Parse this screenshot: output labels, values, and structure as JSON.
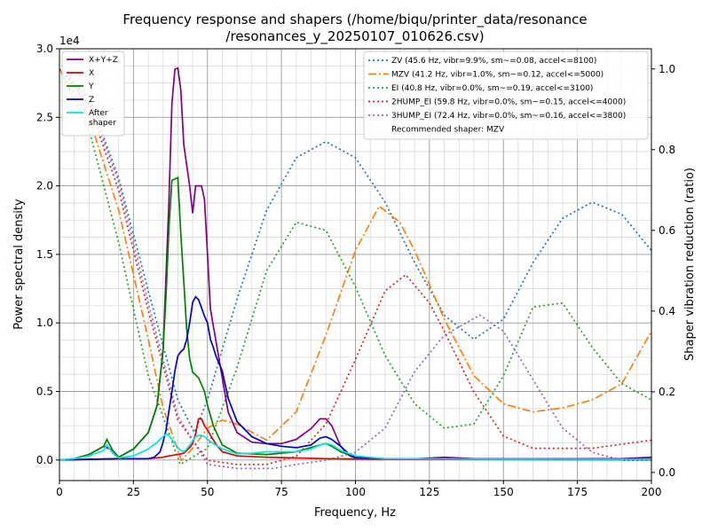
{
  "chart_data": {
    "type": "line",
    "title": [
      "Frequency response and shapers (/home/biqu/printer_data/resonance",
      "/resonances_y_20250107_010626.csv)"
    ],
    "xlabel": "Frequency, Hz",
    "ylabel": "Power spectral density",
    "y2label": "Shaper vibration reduction (ratio)",
    "y_offset_text": "1e4",
    "xlim": [
      0,
      200
    ],
    "ylim": [
      -1500,
      30000
    ],
    "y2lim": [
      -0.02,
      1.05
    ],
    "xticks": [
      0,
      25,
      50,
      75,
      100,
      125,
      150,
      175,
      200
    ],
    "yticks": [
      0,
      5000,
      10000,
      15000,
      20000,
      25000,
      30000
    ],
    "ytick_labels": [
      "0.0",
      "0.5",
      "1.0",
      "1.5",
      "2.0",
      "2.5",
      "3.0"
    ],
    "y2ticks": [
      0.0,
      0.2,
      0.4,
      0.6,
      0.8,
      1.0
    ],
    "y2tick_labels": [
      "0.0",
      "0.2",
      "0.4",
      "0.6",
      "0.8",
      "1.0"
    ],
    "grid": true,
    "legend_left_position": "top-left",
    "legend_right_position": "top-right",
    "psd_series": [
      {
        "name": "X+Y+Z",
        "color": "#800080",
        "x": [
          0,
          5,
          10,
          15,
          18,
          20,
          25,
          30,
          33,
          35,
          36,
          37,
          38,
          39,
          40,
          41,
          42,
          44,
          45,
          46,
          47,
          48,
          49,
          50,
          51,
          53,
          55,
          57,
          60,
          65,
          70,
          75,
          80,
          85,
          88,
          90,
          92,
          95,
          98,
          100,
          105,
          110,
          120,
          130,
          140,
          150,
          160,
          170,
          180,
          190,
          200
        ],
        "y": [
          0,
          100,
          400,
          1000,
          700,
          200,
          800,
          2000,
          4000,
          8000,
          13500,
          19000,
          26000,
          28500,
          28600,
          27000,
          23000,
          20000,
          18000,
          20000,
          20000,
          20000,
          19000,
          15000,
          11000,
          8500,
          6000,
          3500,
          2000,
          1300,
          1200,
          1200,
          1500,
          2300,
          3000,
          3000,
          2500,
          1000,
          300,
          150,
          100,
          80,
          80,
          200,
          100,
          80,
          80,
          80,
          100,
          100,
          200
        ]
      },
      {
        "name": "X",
        "color": "#dd0000",
        "x": [
          0,
          10,
          20,
          30,
          35,
          37,
          40,
          42,
          44,
          45,
          46,
          47,
          48,
          49,
          50,
          51,
          53,
          55,
          60,
          70,
          80,
          90,
          100,
          120,
          150,
          200
        ],
        "y": [
          0,
          50,
          100,
          100,
          200,
          300,
          400,
          500,
          900,
          1200,
          1900,
          3000,
          3000,
          2500,
          2200,
          1800,
          1100,
          600,
          300,
          200,
          150,
          100,
          80,
          50,
          30,
          20
        ]
      },
      {
        "name": "Y",
        "color": "#008000",
        "x": [
          0,
          5,
          10,
          15,
          16,
          18,
          20,
          25,
          30,
          33,
          35,
          36,
          37,
          38,
          39,
          40,
          41,
          42,
          43,
          44,
          45,
          46,
          47,
          48,
          49,
          50,
          52,
          55,
          60,
          70,
          80,
          88,
          90,
          92,
          95,
          100,
          110,
          150,
          200
        ],
        "y": [
          0,
          100,
          400,
          1000,
          1500,
          700,
          200,
          800,
          2000,
          4000,
          8000,
          12000,
          17000,
          20400,
          20500,
          20600,
          16500,
          13000,
          9500,
          7400,
          6400,
          6200,
          6000,
          5500,
          5000,
          4000,
          2500,
          1100,
          500,
          400,
          600,
          1100,
          1200,
          1000,
          600,
          200,
          100,
          50,
          50
        ]
      },
      {
        "name": "Z",
        "color": "#0000cc",
        "x": [
          0,
          10,
          20,
          30,
          32,
          34,
          35,
          36,
          37,
          38,
          39,
          40,
          41,
          42,
          43,
          44,
          45,
          46,
          47,
          48,
          49,
          50,
          51,
          52,
          53,
          55,
          57,
          60,
          65,
          70,
          75,
          80,
          85,
          88,
          90,
          92,
          95,
          98,
          100,
          110,
          150,
          200
        ],
        "y": [
          0,
          50,
          100,
          100,
          200,
          600,
          1300,
          2200,
          3600,
          5000,
          6500,
          7600,
          7900,
          8100,
          8800,
          10000,
          11500,
          11900,
          11700,
          11100,
          10500,
          10000,
          8800,
          8200,
          7500,
          6500,
          4500,
          2800,
          1700,
          1200,
          1000,
          900,
          1100,
          1600,
          1700,
          1500,
          1000,
          400,
          200,
          100,
          80,
          80
        ]
      },
      {
        "name": "After\nshaper",
        "color": "#00e5e5",
        "x": [
          0,
          5,
          10,
          15,
          16,
          18,
          20,
          25,
          30,
          33,
          35,
          36,
          37,
          38,
          39,
          40,
          41,
          42,
          43,
          44,
          45,
          46,
          47,
          48,
          49,
          50,
          52,
          55,
          60,
          65,
          70,
          75,
          80,
          85,
          88,
          90,
          92,
          95,
          100,
          110,
          150,
          200
        ],
        "y": [
          0,
          100,
          300,
          700,
          1100,
          500,
          150,
          300,
          800,
          1300,
          1700,
          1900,
          1800,
          1500,
          1200,
          900,
          700,
          600,
          800,
          1100,
          1400,
          1700,
          1800,
          1800,
          1700,
          1500,
          1200,
          800,
          450,
          500,
          600,
          600,
          600,
          800,
          1100,
          1200,
          1100,
          700,
          300,
          100,
          60,
          50
        ]
      }
    ],
    "shaper_series": [
      {
        "name": "ZV (45.6 Hz, vibr=9.9%, sm~=0.08, accel<=8100)",
        "color": "#1f77b4",
        "dash": "dotted",
        "x": [
          0,
          10,
          20,
          30,
          40,
          45.6,
          50,
          60,
          70,
          80,
          90,
          100,
          110,
          120,
          130,
          140,
          150,
          160,
          170,
          180,
          190,
          200
        ],
        "y": [
          1.0,
          0.93,
          0.73,
          0.45,
          0.18,
          0.099,
          0.18,
          0.43,
          0.65,
          0.78,
          0.82,
          0.78,
          0.67,
          0.52,
          0.39,
          0.33,
          0.38,
          0.52,
          0.63,
          0.67,
          0.64,
          0.55
        ]
      },
      {
        "name": "MZV (41.2 Hz, vibr=1.0%, sm~=0.12, accel<=5000)",
        "color": "#ff7f0e",
        "dash": "dashdot",
        "x": [
          0,
          10,
          20,
          30,
          35,
          41.2,
          45,
          50,
          55,
          60,
          70,
          80,
          90,
          100,
          108,
          115,
          120,
          130,
          140,
          150,
          160,
          170,
          180,
          190,
          200
        ],
        "y": [
          1.0,
          0.88,
          0.65,
          0.33,
          0.16,
          0.03,
          0.06,
          0.11,
          0.13,
          0.12,
          0.08,
          0.15,
          0.34,
          0.55,
          0.66,
          0.62,
          0.55,
          0.38,
          0.24,
          0.17,
          0.15,
          0.16,
          0.18,
          0.22,
          0.35
        ]
      },
      {
        "name": "EI (40.8 Hz, vibr=0.0%, sm~=0.19, accel<=3100)",
        "color": "#2ca02c",
        "dash": "dotted",
        "x": [
          0,
          10,
          20,
          30,
          40.8,
          50,
          60,
          70,
          80,
          90,
          100,
          110,
          120,
          130,
          140,
          150,
          160,
          170,
          180,
          190,
          200
        ],
        "y": [
          1.0,
          0.85,
          0.57,
          0.24,
          0.02,
          0.06,
          0.26,
          0.5,
          0.62,
          0.6,
          0.46,
          0.29,
          0.17,
          0.11,
          0.12,
          0.24,
          0.41,
          0.42,
          0.31,
          0.22,
          0.18
        ]
      },
      {
        "name": "2HUMP_EI (59.8 Hz, vibr=0.0%, sm~=0.15, accel<=4000)",
        "color": "#d62728",
        "dash": "dotted",
        "x": [
          0,
          10,
          20,
          30,
          40,
          50,
          59.8,
          65,
          70,
          80,
          90,
          100,
          110,
          117,
          125,
          130,
          140,
          150,
          160,
          170,
          180,
          190,
          200
        ],
        "y": [
          1.0,
          0.91,
          0.7,
          0.4,
          0.13,
          0.03,
          0.02,
          0.02,
          0.02,
          0.04,
          0.12,
          0.28,
          0.45,
          0.49,
          0.42,
          0.35,
          0.2,
          0.09,
          0.06,
          0.06,
          0.06,
          0.07,
          0.08
        ]
      },
      {
        "name": "3HUMP_EI (72.4 Hz, vibr=0.0%, sm~=0.16, accel<=3800)",
        "color": "#9467bd",
        "dash": "dotted",
        "x": [
          0,
          10,
          20,
          30,
          40,
          50,
          60,
          72.4,
          80,
          90,
          100,
          110,
          120,
          130,
          142,
          150,
          160,
          170,
          180,
          190,
          200
        ],
        "y": [
          1.0,
          0.92,
          0.72,
          0.42,
          0.14,
          0.02,
          0.01,
          0.01,
          0.02,
          0.03,
          0.05,
          0.11,
          0.25,
          0.34,
          0.39,
          0.35,
          0.23,
          0.11,
          0.05,
          0.03,
          0.03
        ]
      }
    ],
    "recommended_text": "Recommended shaper: MZV"
  }
}
